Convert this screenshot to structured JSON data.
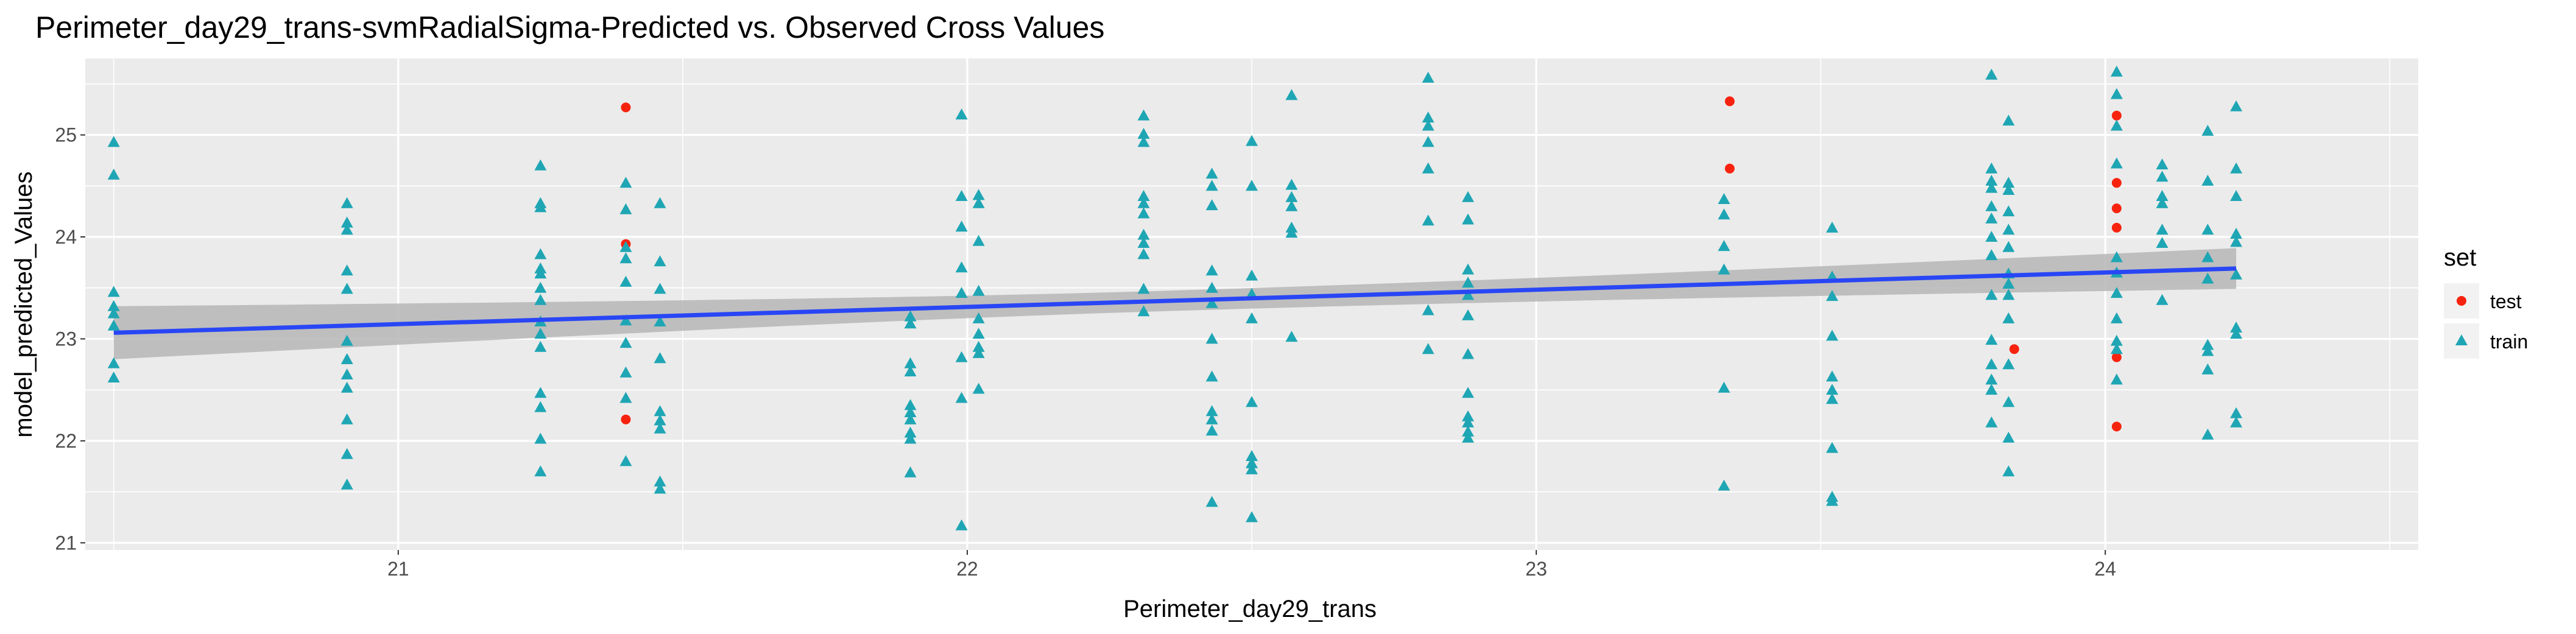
{
  "chart_data": {
    "type": "scatter",
    "title": "Perimeter_day29_trans-svmRadialSigma-Predicted vs. Observed Cross Values",
    "xlabel": "Perimeter_day29_trans",
    "ylabel": "model_predicted_Values",
    "xlim": [
      20.45,
      24.55
    ],
    "ylim": [
      20.93,
      25.75
    ],
    "x_ticks": [
      21,
      22,
      23,
      24
    ],
    "y_ticks": [
      21,
      22,
      23,
      24,
      25
    ],
    "grid": true,
    "legend": {
      "title": "set",
      "placement": "right",
      "entries": [
        {
          "label": "test",
          "color": "#F8230F",
          "shape": "circle"
        },
        {
          "label": "train",
          "color": "#1FA6B4",
          "shape": "triangle"
        }
      ]
    },
    "colors": {
      "panel": "#EBEBEB",
      "grid": "#FFFFFF",
      "trend_line": "#2946F5",
      "ribbon": "#B3B3B3"
    },
    "trend": {
      "method": "linear",
      "x": [
        20.5,
        24.23
      ],
      "y": [
        23.06,
        23.69
      ],
      "ci_halfwidth_ends": [
        0.26,
        0.2
      ],
      "ci_halfwidth_center": 0.1
    },
    "series": [
      {
        "name": "test",
        "points": [
          [
            21.4,
            25.27
          ],
          [
            21.4,
            23.93
          ],
          [
            21.4,
            22.21
          ],
          [
            23.34,
            25.33
          ],
          [
            23.34,
            24.67
          ],
          [
            23.84,
            22.9
          ],
          [
            24.02,
            25.19
          ],
          [
            24.02,
            24.53
          ],
          [
            24.02,
            24.28
          ],
          [
            24.02,
            24.09
          ],
          [
            24.02,
            22.82
          ],
          [
            24.02,
            22.14
          ]
        ]
      },
      {
        "name": "train",
        "points": [
          [
            20.5,
            24.93
          ],
          [
            20.5,
            24.61
          ],
          [
            20.5,
            23.46
          ],
          [
            20.5,
            23.32
          ],
          [
            20.5,
            23.25
          ],
          [
            20.5,
            23.13
          ],
          [
            20.5,
            22.76
          ],
          [
            20.5,
            22.62
          ],
          [
            20.91,
            24.33
          ],
          [
            20.91,
            24.14
          ],
          [
            20.91,
            24.07
          ],
          [
            20.91,
            23.67
          ],
          [
            20.91,
            23.49
          ],
          [
            20.91,
            22.98
          ],
          [
            20.91,
            22.8
          ],
          [
            20.91,
            22.65
          ],
          [
            20.91,
            22.52
          ],
          [
            20.91,
            22.21
          ],
          [
            20.91,
            21.87
          ],
          [
            20.91,
            21.57
          ],
          [
            21.25,
            24.7
          ],
          [
            21.25,
            24.33
          ],
          [
            21.25,
            24.29
          ],
          [
            21.25,
            23.83
          ],
          [
            21.25,
            23.69
          ],
          [
            21.25,
            23.64
          ],
          [
            21.25,
            23.5
          ],
          [
            21.25,
            23.38
          ],
          [
            21.25,
            23.17
          ],
          [
            21.25,
            23.05
          ],
          [
            21.25,
            22.92
          ],
          [
            21.25,
            22.47
          ],
          [
            21.25,
            22.33
          ],
          [
            21.25,
            22.02
          ],
          [
            21.25,
            21.7
          ],
          [
            21.4,
            24.53
          ],
          [
            21.4,
            24.27
          ],
          [
            21.4,
            23.9
          ],
          [
            21.4,
            23.79
          ],
          [
            21.4,
            23.56
          ],
          [
            21.4,
            23.18
          ],
          [
            21.4,
            22.96
          ],
          [
            21.4,
            22.67
          ],
          [
            21.4,
            22.42
          ],
          [
            21.4,
            21.8
          ],
          [
            21.46,
            24.33
          ],
          [
            21.46,
            23.76
          ],
          [
            21.46,
            23.49
          ],
          [
            21.46,
            23.17
          ],
          [
            21.46,
            22.81
          ],
          [
            21.46,
            22.29
          ],
          [
            21.46,
            22.2
          ],
          [
            21.46,
            22.12
          ],
          [
            21.46,
            21.6
          ],
          [
            21.46,
            21.53
          ],
          [
            21.9,
            23.22
          ],
          [
            21.9,
            23.15
          ],
          [
            21.9,
            22.76
          ],
          [
            21.9,
            22.68
          ],
          [
            21.9,
            22.35
          ],
          [
            21.9,
            22.28
          ],
          [
            21.9,
            22.21
          ],
          [
            21.9,
            22.08
          ],
          [
            21.9,
            22.02
          ],
          [
            21.9,
            21.69
          ],
          [
            21.99,
            25.2
          ],
          [
            21.99,
            24.4
          ],
          [
            21.99,
            24.1
          ],
          [
            21.99,
            23.7
          ],
          [
            21.99,
            23.45
          ],
          [
            21.99,
            22.82
          ],
          [
            21.99,
            22.42
          ],
          [
            21.99,
            21.17
          ],
          [
            22.02,
            24.41
          ],
          [
            22.02,
            24.33
          ],
          [
            22.02,
            23.96
          ],
          [
            22.02,
            23.47
          ],
          [
            22.02,
            23.2
          ],
          [
            22.02,
            23.05
          ],
          [
            22.02,
            22.92
          ],
          [
            22.02,
            22.86
          ],
          [
            22.02,
            22.51
          ],
          [
            22.31,
            25.19
          ],
          [
            22.31,
            25.01
          ],
          [
            22.31,
            24.93
          ],
          [
            22.31,
            24.4
          ],
          [
            22.31,
            24.33
          ],
          [
            22.31,
            24.23
          ],
          [
            22.31,
            24.02
          ],
          [
            22.31,
            23.94
          ],
          [
            22.31,
            23.83
          ],
          [
            22.31,
            23.49
          ],
          [
            22.31,
            23.27
          ],
          [
            22.43,
            24.62
          ],
          [
            22.43,
            24.5
          ],
          [
            22.43,
            24.31
          ],
          [
            22.43,
            23.67
          ],
          [
            22.43,
            23.5
          ],
          [
            22.43,
            23.35
          ],
          [
            22.43,
            23.0
          ],
          [
            22.43,
            22.63
          ],
          [
            22.43,
            22.29
          ],
          [
            22.43,
            22.21
          ],
          [
            22.43,
            22.1
          ],
          [
            22.43,
            21.4
          ],
          [
            22.5,
            24.94
          ],
          [
            22.5,
            24.5
          ],
          [
            22.5,
            23.62
          ],
          [
            22.5,
            23.44
          ],
          [
            22.5,
            23.2
          ],
          [
            22.5,
            22.38
          ],
          [
            22.5,
            21.85
          ],
          [
            22.5,
            21.78
          ],
          [
            22.5,
            21.72
          ],
          [
            22.5,
            21.25
          ],
          [
            22.57,
            25.39
          ],
          [
            22.57,
            24.51
          ],
          [
            22.57,
            24.39
          ],
          [
            22.57,
            24.3
          ],
          [
            22.57,
            24.09
          ],
          [
            22.57,
            24.04
          ],
          [
            22.57,
            23.02
          ],
          [
            22.81,
            25.56
          ],
          [
            22.81,
            25.17
          ],
          [
            22.81,
            25.09
          ],
          [
            22.81,
            24.93
          ],
          [
            22.81,
            24.67
          ],
          [
            22.81,
            24.16
          ],
          [
            22.81,
            23.28
          ],
          [
            22.81,
            22.9
          ],
          [
            22.88,
            24.39
          ],
          [
            22.88,
            24.17
          ],
          [
            22.88,
            23.68
          ],
          [
            22.88,
            23.55
          ],
          [
            22.88,
            23.43
          ],
          [
            22.88,
            23.23
          ],
          [
            22.88,
            22.85
          ],
          [
            22.88,
            22.47
          ],
          [
            22.88,
            22.24
          ],
          [
            22.88,
            22.18
          ],
          [
            22.88,
            22.09
          ],
          [
            22.88,
            22.03
          ],
          [
            23.33,
            24.37
          ],
          [
            23.33,
            24.22
          ],
          [
            23.33,
            23.91
          ],
          [
            23.33,
            23.68
          ],
          [
            23.33,
            22.52
          ],
          [
            23.33,
            21.56
          ],
          [
            23.52,
            24.09
          ],
          [
            23.52,
            23.61
          ],
          [
            23.52,
            23.42
          ],
          [
            23.52,
            23.03
          ],
          [
            23.52,
            22.63
          ],
          [
            23.52,
            22.5
          ],
          [
            23.52,
            22.41
          ],
          [
            23.52,
            21.93
          ],
          [
            23.52,
            21.45
          ],
          [
            23.52,
            21.41
          ],
          [
            23.8,
            25.59
          ],
          [
            23.8,
            24.67
          ],
          [
            23.8,
            24.55
          ],
          [
            23.8,
            24.48
          ],
          [
            23.8,
            24.3
          ],
          [
            23.8,
            24.18
          ],
          [
            23.8,
            24.0
          ],
          [
            23.8,
            23.82
          ],
          [
            23.8,
            23.43
          ],
          [
            23.8,
            22.99
          ],
          [
            23.8,
            22.75
          ],
          [
            23.8,
            22.6
          ],
          [
            23.8,
            22.5
          ],
          [
            23.8,
            22.18
          ],
          [
            23.83,
            25.14
          ],
          [
            23.83,
            24.53
          ],
          [
            23.83,
            24.46
          ],
          [
            23.83,
            24.25
          ],
          [
            23.83,
            24.07
          ],
          [
            23.83,
            23.9
          ],
          [
            23.83,
            23.64
          ],
          [
            23.83,
            23.54
          ],
          [
            23.83,
            23.43
          ],
          [
            23.83,
            23.2
          ],
          [
            23.83,
            22.75
          ],
          [
            23.83,
            22.38
          ],
          [
            23.83,
            21.7
          ],
          [
            23.83,
            22.03
          ],
          [
            24.02,
            25.62
          ],
          [
            24.02,
            25.4
          ],
          [
            24.02,
            25.09
          ],
          [
            24.02,
            24.72
          ],
          [
            24.02,
            23.8
          ],
          [
            24.02,
            23.65
          ],
          [
            24.02,
            23.45
          ],
          [
            24.02,
            23.2
          ],
          [
            24.02,
            22.98
          ],
          [
            24.02,
            22.9
          ],
          [
            24.02,
            22.6
          ],
          [
            24.1,
            24.71
          ],
          [
            24.1,
            24.59
          ],
          [
            24.1,
            24.4
          ],
          [
            24.1,
            24.33
          ],
          [
            24.1,
            24.07
          ],
          [
            24.1,
            23.94
          ],
          [
            24.1,
            23.38
          ],
          [
            24.18,
            25.04
          ],
          [
            24.18,
            24.55
          ],
          [
            24.18,
            24.07
          ],
          [
            24.18,
            23.8
          ],
          [
            24.18,
            23.59
          ],
          [
            24.18,
            22.94
          ],
          [
            24.18,
            22.88
          ],
          [
            24.18,
            22.7
          ],
          [
            24.18,
            22.06
          ],
          [
            24.23,
            25.28
          ],
          [
            24.23,
            24.67
          ],
          [
            24.23,
            24.4
          ],
          [
            24.23,
            24.03
          ],
          [
            24.23,
            23.95
          ],
          [
            24.23,
            23.63
          ],
          [
            24.23,
            23.11
          ],
          [
            24.23,
            23.05
          ],
          [
            24.23,
            22.27
          ],
          [
            24.23,
            22.18
          ]
        ]
      }
    ]
  }
}
